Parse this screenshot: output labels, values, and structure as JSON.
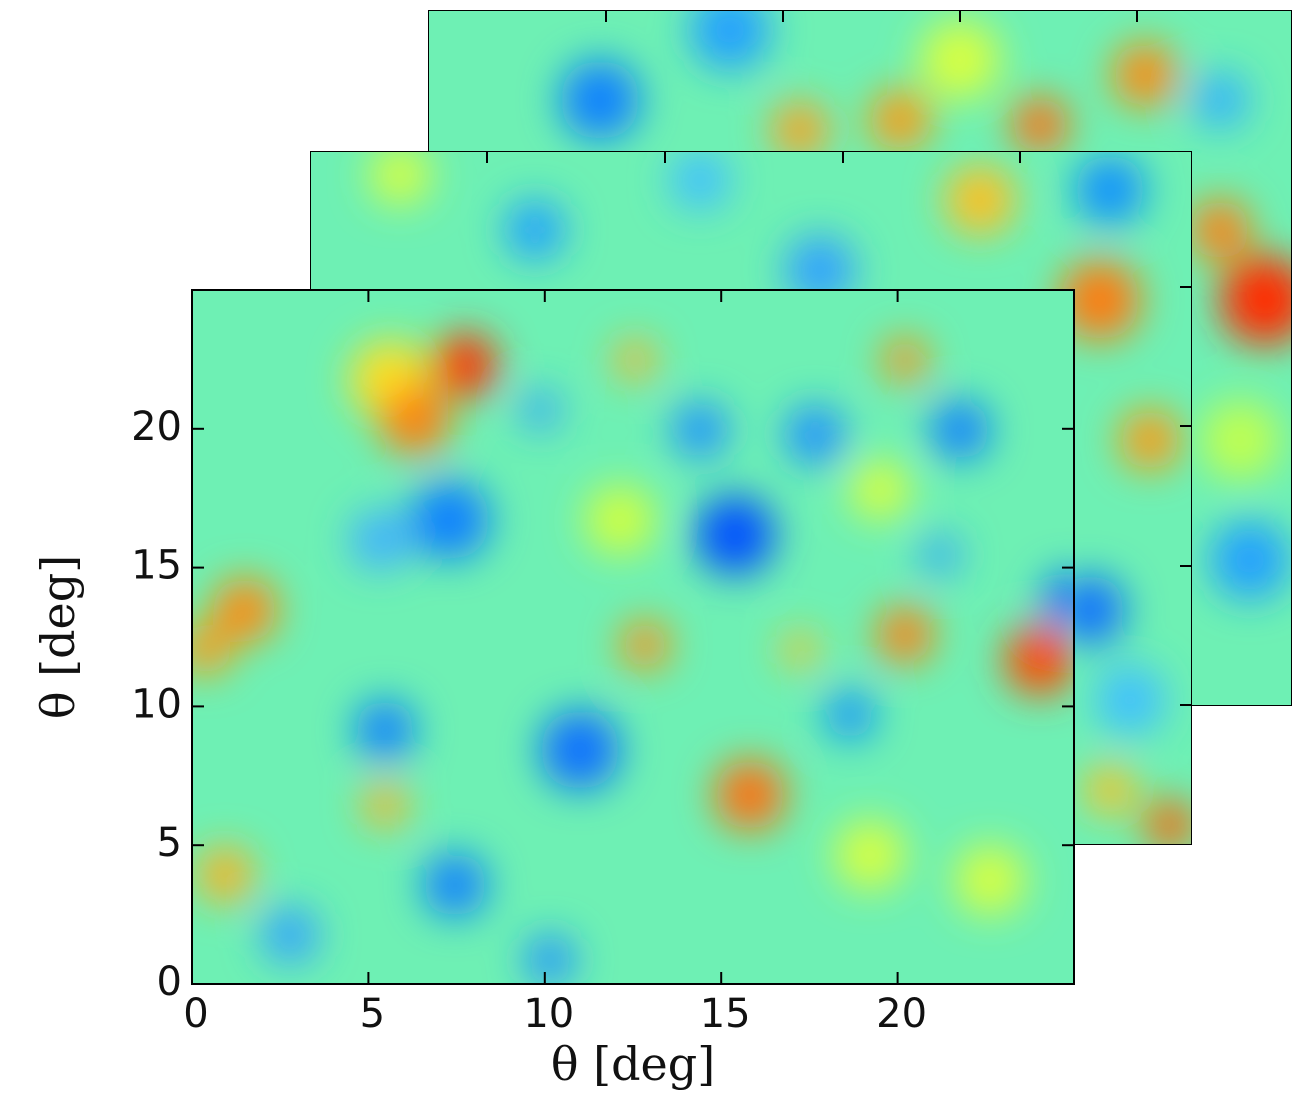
{
  "chart_data": {
    "type": "heatmap",
    "x_label": "θ [deg]",
    "y_label": "θ [deg]",
    "xlim": [
      0,
      25
    ],
    "ylim": [
      0,
      25
    ],
    "xticks": [
      0,
      5,
      10,
      15,
      20
    ],
    "yticks": [
      0,
      5,
      10,
      15,
      20
    ]
  }
}
